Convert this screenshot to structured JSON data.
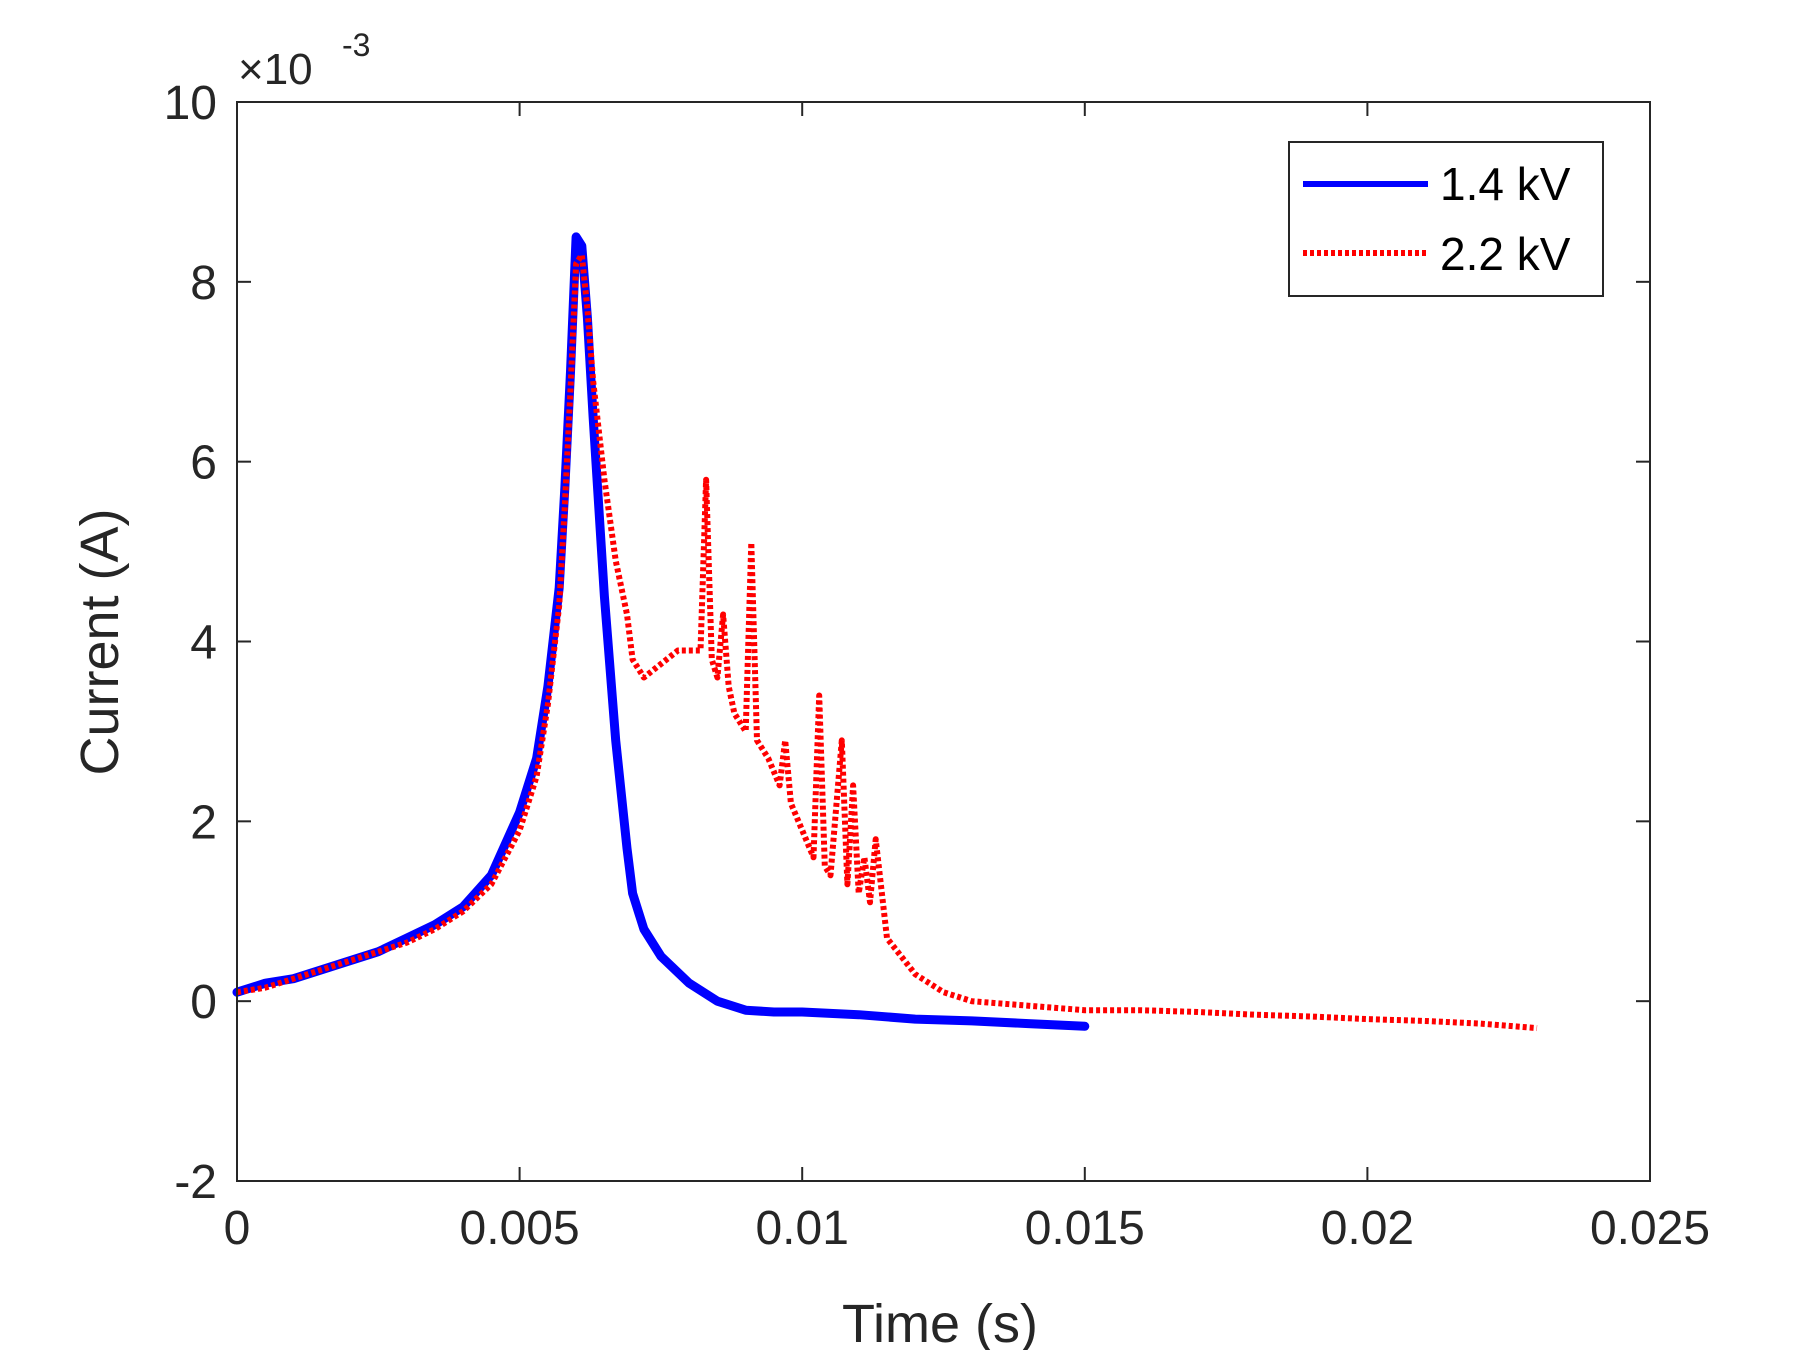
{
  "chart_data": {
    "type": "line",
    "title": "",
    "xlabel": "Time (s)",
    "ylabel": "Current (A)",
    "xlim": [
      0,
      0.025
    ],
    "ylim": [
      -0.002,
      0.01
    ],
    "x_ticks": [
      0,
      0.005,
      0.01,
      0.015,
      0.02,
      0.025
    ],
    "x_tick_labels": [
      "0",
      "0.005",
      "0.01",
      "0.015",
      "0.02",
      "0.025"
    ],
    "y_ticks": [
      -2,
      0,
      2,
      4,
      6,
      8,
      10
    ],
    "y_tick_labels": [
      "-2",
      "0",
      "2",
      "4",
      "6",
      "8",
      "10"
    ],
    "y_exponent_base": "×10",
    "y_exponent_power": "-3",
    "grid": false,
    "legend_location": "top-right",
    "series": [
      {
        "name": "1.4 kV",
        "color": "#0000ff",
        "style": "solid",
        "x": [
          0,
          0.0005,
          0.001,
          0.0015,
          0.002,
          0.0025,
          0.003,
          0.0035,
          0.004,
          0.0045,
          0.005,
          0.0053,
          0.0055,
          0.0057,
          0.0058,
          0.0059,
          0.006,
          0.0061,
          0.0062,
          0.0063,
          0.0065,
          0.0067,
          0.0069,
          0.007,
          0.0072,
          0.0075,
          0.008,
          0.0085,
          0.009,
          0.0095,
          0.01,
          0.011,
          0.012,
          0.013,
          0.014,
          0.015
        ],
        "y": [
          0.0001,
          0.0002,
          0.00025,
          0.00035,
          0.00045,
          0.00055,
          0.0007,
          0.00085,
          0.00105,
          0.0014,
          0.0021,
          0.0027,
          0.0035,
          0.0046,
          0.0057,
          0.007,
          0.0085,
          0.0084,
          0.0076,
          0.0065,
          0.0045,
          0.0029,
          0.0017,
          0.0012,
          0.0008,
          0.0005,
          0.0002,
          0.0,
          -0.0001,
          -0.00012,
          -0.00012,
          -0.00015,
          -0.0002,
          -0.00022,
          -0.00025,
          -0.00028
        ]
      },
      {
        "name": "2.2 kV",
        "color": "#ff0000",
        "style": "dotted",
        "x": [
          0,
          0.0005,
          0.001,
          0.0015,
          0.002,
          0.0025,
          0.003,
          0.0035,
          0.004,
          0.0045,
          0.005,
          0.0053,
          0.0055,
          0.0057,
          0.0058,
          0.0059,
          0.006,
          0.0061,
          0.0062,
          0.0063,
          0.0065,
          0.0067,
          0.0069,
          0.007,
          0.0072,
          0.0074,
          0.0076,
          0.0078,
          0.008,
          0.0082,
          0.0083,
          0.0084,
          0.0085,
          0.0086,
          0.0087,
          0.0088,
          0.009,
          0.0091,
          0.0092,
          0.0094,
          0.0096,
          0.0097,
          0.0098,
          0.01,
          0.0102,
          0.0103,
          0.0104,
          0.0105,
          0.0107,
          0.0108,
          0.0109,
          0.011,
          0.0111,
          0.0112,
          0.0113,
          0.0115,
          0.012,
          0.0125,
          0.013,
          0.014,
          0.015,
          0.016,
          0.017,
          0.018,
          0.019,
          0.02,
          0.021,
          0.022,
          0.023
        ],
        "y": [
          0.0001,
          0.00015,
          0.00025,
          0.00035,
          0.00045,
          0.00055,
          0.00065,
          0.0008,
          0.001,
          0.0013,
          0.0019,
          0.0025,
          0.0033,
          0.0044,
          0.0055,
          0.0068,
          0.0082,
          0.0083,
          0.0077,
          0.0069,
          0.0058,
          0.0049,
          0.0043,
          0.0038,
          0.0036,
          0.0037,
          0.0038,
          0.0039,
          0.0039,
          0.0039,
          0.0058,
          0.0038,
          0.0036,
          0.0043,
          0.0035,
          0.0032,
          0.003,
          0.0051,
          0.0029,
          0.0027,
          0.0024,
          0.0029,
          0.0022,
          0.0019,
          0.0016,
          0.0034,
          0.0015,
          0.0014,
          0.0029,
          0.0013,
          0.0024,
          0.0012,
          0.0016,
          0.0011,
          0.0018,
          0.0007,
          0.0003,
          0.0001,
          0.0,
          -5e-05,
          -0.0001,
          -0.0001,
          -0.00012,
          -0.00015,
          -0.00017,
          -0.0002,
          -0.00022,
          -0.00025,
          -0.0003
        ]
      }
    ]
  }
}
